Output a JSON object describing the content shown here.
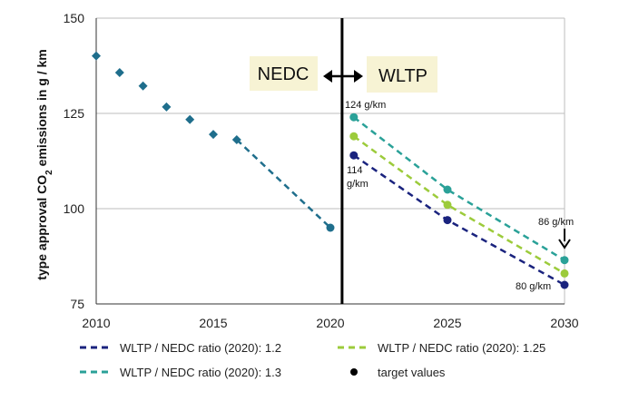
{
  "chart_data": {
    "type": "line",
    "ylabel_main": "type approval CO",
    "ylabel_sub": "2",
    "ylabel_tail": " emissions in g / km",
    "xlim": [
      2010,
      2030
    ],
    "ylim": [
      75,
      150
    ],
    "x_ticks": [
      "2010",
      "2015",
      "2020",
      "2025",
      "2030"
    ],
    "y_ticks": [
      "75",
      "100",
      "125",
      "150"
    ],
    "grid": "horizontal",
    "divider_year": 2020.5,
    "region_labels": {
      "left": "NEDC",
      "right": "WLTP"
    },
    "historical": {
      "color": "#1f6e8c",
      "points": [
        {
          "x": 2010,
          "y": 140.1
        },
        {
          "x": 2011,
          "y": 135.7
        },
        {
          "x": 2012,
          "y": 132.2
        },
        {
          "x": 2013,
          "y": 126.7
        },
        {
          "x": 2014,
          "y": 123.4
        },
        {
          "x": 2015,
          "y": 119.5
        },
        {
          "x": 2016,
          "y": 118.1
        }
      ],
      "target": {
        "x": 2020,
        "y": 95
      }
    },
    "series": [
      {
        "name": "WLTP / NEDC ratio (2020): 1.2",
        "color": "#1a237e",
        "points": [
          {
            "x": 2021,
            "y": 114
          },
          {
            "x": 2025,
            "y": 97
          },
          {
            "x": 2030,
            "y": 80
          }
        ]
      },
      {
        "name": "WLTP / NEDC ratio (2020): 1.25",
        "color": "#9ccb3b",
        "points": [
          {
            "x": 2021,
            "y": 119
          },
          {
            "x": 2025,
            "y": 101
          },
          {
            "x": 2030,
            "y": 83
          }
        ]
      },
      {
        "name": "WLTP / NEDC ratio (2020): 1.3",
        "color": "#2aa198",
        "points": [
          {
            "x": 2021,
            "y": 124
          },
          {
            "x": 2025,
            "y": 105
          },
          {
            "x": 2030,
            "y": 86.5
          }
        ]
      }
    ],
    "legend_target_label": "target values",
    "annotations": {
      "top_2021": "124 g/km",
      "bottom_2021_line1": "114",
      "bottom_2021_line2": "g/km",
      "top_2030": "86 g/km",
      "bottom_2030": "80 g/km"
    },
    "colors": {
      "highlight_box": "#f7f3d4",
      "divider": "#000000",
      "grid": "#bdbdbd"
    }
  }
}
